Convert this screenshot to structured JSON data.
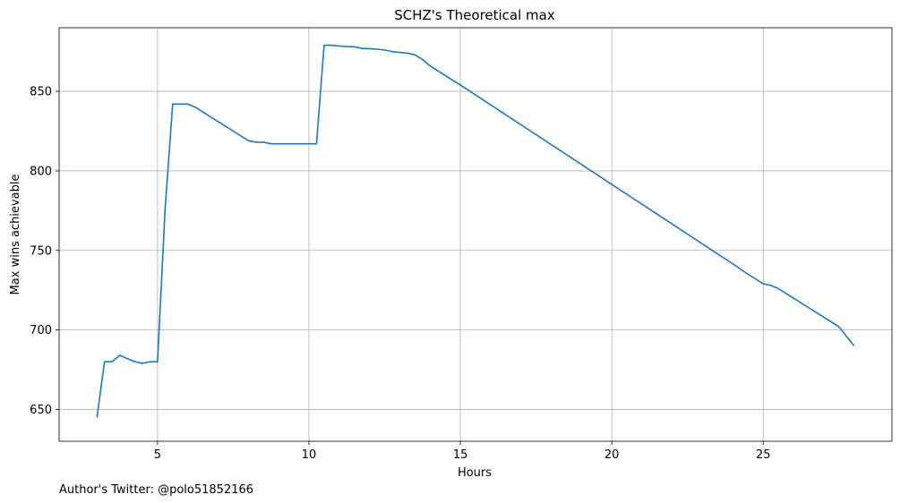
{
  "chart_data": {
    "type": "line",
    "title": "SCHZ's Theoretical max",
    "xlabel": "Hours",
    "ylabel": "Max wins achievable",
    "xlim": [
      1.75,
      29.25
    ],
    "ylim": [
      630,
      890
    ],
    "xticks": [
      5,
      10,
      15,
      20,
      25
    ],
    "yticks": [
      650,
      700,
      750,
      800,
      850
    ],
    "grid": true,
    "legend": "none",
    "series": [
      {
        "color": "#1f77b4",
        "x": [
          3.0,
          3.25,
          3.5,
          3.75,
          4.0,
          4.25,
          4.5,
          4.75,
          5.0,
          5.25,
          5.5,
          5.75,
          6.0,
          6.25,
          6.5,
          6.75,
          7.0,
          7.25,
          7.5,
          7.75,
          8.0,
          8.25,
          8.5,
          8.75,
          9.0,
          9.25,
          9.5,
          9.75,
          10.0,
          10.25,
          10.5,
          10.75,
          11.0,
          11.25,
          11.5,
          11.75,
          12.0,
          12.25,
          12.5,
          12.75,
          13.0,
          13.25,
          13.5,
          13.75,
          14.0,
          14.5,
          15.0,
          16.0,
          17.0,
          18.0,
          19.0,
          20.0,
          21.0,
          22.0,
          23.0,
          24.0,
          24.5,
          24.75,
          25.0,
          25.25,
          25.5,
          26.0,
          26.5,
          27.0,
          27.5,
          28.0
        ],
        "y": [
          645,
          680,
          680,
          684,
          682,
          680,
          679,
          680,
          680,
          776,
          842,
          842,
          842,
          840,
          837,
          834,
          831,
          828,
          825,
          822,
          819,
          818,
          818,
          817,
          817,
          817,
          817,
          817,
          817,
          817,
          879,
          879,
          878.5,
          878.2,
          878,
          877,
          876.8,
          876.5,
          876,
          875,
          874.5,
          874,
          873,
          870,
          866,
          860,
          854,
          841.5,
          829,
          816.5,
          804,
          791.5,
          779,
          766.5,
          754,
          741.5,
          735,
          732,
          729,
          728,
          726,
          720,
          714,
          708,
          702,
          690
        ]
      }
    ]
  },
  "footer": {
    "credit": "Author's Twitter: @polo51852166"
  }
}
